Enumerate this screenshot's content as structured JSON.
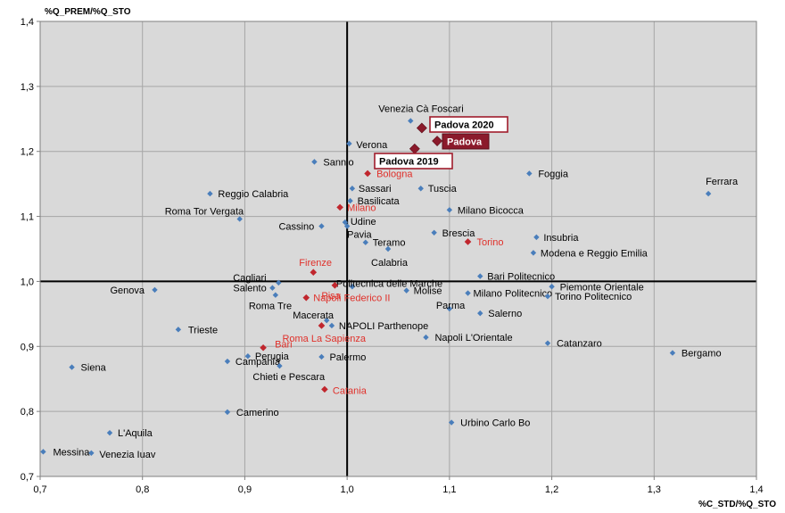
{
  "chart_data": {
    "type": "scatter",
    "title": "",
    "xlabel": "%C_STD/%Q_STO",
    "ylabel": "%Q_PREM/%Q_STO",
    "xlim": [
      0.7,
      1.4
    ],
    "ylim": [
      0.7,
      1.4
    ],
    "xticks": [
      "0,7",
      "0,8",
      "0,9",
      "1,0",
      "1,1",
      "1,2",
      "1,3",
      "1,4"
    ],
    "yticks": [
      "0,7",
      "0,8",
      "0,9",
      "1,0",
      "1,1",
      "1,2",
      "1,3",
      "1,4"
    ],
    "grid": true,
    "reference_lines": {
      "x": 1.0,
      "y": 1.0
    },
    "colors": {
      "blue_point": "#4a7ebb",
      "red_point": "#c0262d",
      "highlight_point": "#8b1a2b",
      "red_label": "#e0302a",
      "plot_bg": "#d9d9d9",
      "grid": "#a6a6a6",
      "highlight_border": "#a01c2c",
      "highlight_fill": "#8b1a2b"
    },
    "points": [
      {
        "name": "Venezia Cà Foscari",
        "x": 1.062,
        "y": 1.247,
        "group": "blue"
      },
      {
        "name": "Verona",
        "x": 1.002,
        "y": 1.212,
        "group": "blue"
      },
      {
        "name": "Sannio",
        "x": 0.968,
        "y": 1.184,
        "group": "blue"
      },
      {
        "name": "Foggia",
        "x": 1.178,
        "y": 1.166,
        "group": "blue"
      },
      {
        "name": "Ferrara",
        "x": 1.353,
        "y": 1.135,
        "group": "blue"
      },
      {
        "name": "Sassari",
        "x": 1.005,
        "y": 1.143,
        "group": "blue"
      },
      {
        "name": "Tuscia",
        "x": 1.072,
        "y": 1.143,
        "group": "blue"
      },
      {
        "name": "Reggio Calabria",
        "x": 0.866,
        "y": 1.135,
        "group": "blue"
      },
      {
        "name": "Basilicata",
        "x": 1.003,
        "y": 1.124,
        "group": "blue"
      },
      {
        "name": "Milano Bicocca",
        "x": 1.1,
        "y": 1.11,
        "group": "blue"
      },
      {
        "name": "Roma Tor Vergata",
        "x": 0.895,
        "y": 1.096,
        "group": "blue"
      },
      {
        "name": "Udine",
        "x": 0.998,
        "y": 1.091,
        "group": "blue"
      },
      {
        "name": "Cassino",
        "x": 0.975,
        "y": 1.085,
        "group": "blue"
      },
      {
        "name": "Pavia",
        "x": 1.0,
        "y": 1.085,
        "group": "blue"
      },
      {
        "name": "Brescia",
        "x": 1.085,
        "y": 1.075,
        "group": "blue"
      },
      {
        "name": "Insubria",
        "x": 1.185,
        "y": 1.068,
        "group": "blue"
      },
      {
        "name": "Teramo",
        "x": 1.018,
        "y": 1.06,
        "group": "blue"
      },
      {
        "name": "Calabria",
        "x": 1.04,
        "y": 1.05,
        "group": "blue"
      },
      {
        "name": "Modena e Reggio Emilia",
        "x": 1.182,
        "y": 1.044,
        "group": "blue"
      },
      {
        "name": "Bari Politecnico",
        "x": 1.13,
        "y": 1.008,
        "group": "blue"
      },
      {
        "name": "Cagliari",
        "x": 0.933,
        "y": 0.998,
        "group": "blue"
      },
      {
        "name": "Politecnica delle Marche",
        "x": 1.005,
        "y": 0.992,
        "group": "blue"
      },
      {
        "name": "Salento",
        "x": 0.927,
        "y": 0.99,
        "group": "blue"
      },
      {
        "name": "Genova",
        "x": 0.812,
        "y": 0.987,
        "group": "blue"
      },
      {
        "name": "Molise",
        "x": 1.058,
        "y": 0.986,
        "group": "blue"
      },
      {
        "name": "Piemonte Orientale",
        "x": 1.2,
        "y": 0.992,
        "group": "blue"
      },
      {
        "name": "Milano Politecnico",
        "x": 1.118,
        "y": 0.982,
        "group": "blue"
      },
      {
        "name": "Roma Tre",
        "x": 0.93,
        "y": 0.979,
        "group": "blue"
      },
      {
        "name": "Torino Politecnico",
        "x": 1.196,
        "y": 0.977,
        "group": "blue"
      },
      {
        "name": "Parma",
        "x": 1.1,
        "y": 0.958,
        "group": "blue"
      },
      {
        "name": "Salerno",
        "x": 1.13,
        "y": 0.951,
        "group": "blue"
      },
      {
        "name": "Macerata",
        "x": 0.98,
        "y": 0.94,
        "group": "blue"
      },
      {
        "name": "NAPOLI Parthenope",
        "x": 0.985,
        "y": 0.932,
        "group": "blue"
      },
      {
        "name": "Trieste",
        "x": 0.835,
        "y": 0.926,
        "group": "blue"
      },
      {
        "name": "Napoli L'Orientale",
        "x": 1.077,
        "y": 0.914,
        "group": "blue"
      },
      {
        "name": "Catanzaro",
        "x": 1.196,
        "y": 0.905,
        "group": "blue"
      },
      {
        "name": "Bergamo",
        "x": 1.318,
        "y": 0.89,
        "group": "blue"
      },
      {
        "name": "Perugia",
        "x": 0.903,
        "y": 0.885,
        "group": "blue"
      },
      {
        "name": "Palermo",
        "x": 0.975,
        "y": 0.884,
        "group": "blue"
      },
      {
        "name": "Campania",
        "x": 0.883,
        "y": 0.877,
        "group": "blue"
      },
      {
        "name": "Chieti e Pescara",
        "x": 0.934,
        "y": 0.87,
        "group": "blue"
      },
      {
        "name": "Siena",
        "x": 0.731,
        "y": 0.868,
        "group": "blue"
      },
      {
        "name": "Camerino",
        "x": 0.883,
        "y": 0.799,
        "group": "blue"
      },
      {
        "name": "Urbino Carlo Bo",
        "x": 1.102,
        "y": 0.783,
        "group": "blue"
      },
      {
        "name": "L'Aquila",
        "x": 0.768,
        "y": 0.767,
        "group": "blue"
      },
      {
        "name": "Messina",
        "x": 0.703,
        "y": 0.738,
        "group": "blue"
      },
      {
        "name": "Venezia Iuav",
        "x": 0.75,
        "y": 0.736,
        "group": "blue"
      },
      {
        "name": "Bologna",
        "x": 1.02,
        "y": 1.166,
        "group": "red"
      },
      {
        "name": "Milano",
        "x": 0.993,
        "y": 1.114,
        "group": "red"
      },
      {
        "name": "Torino",
        "x": 1.118,
        "y": 1.061,
        "group": "red"
      },
      {
        "name": "Firenze",
        "x": 0.967,
        "y": 1.014,
        "group": "red"
      },
      {
        "name": "Pisa",
        "x": 0.988,
        "y": 0.994,
        "group": "red"
      },
      {
        "name": "Napoli Federico II",
        "x": 0.96,
        "y": 0.975,
        "group": "red"
      },
      {
        "name": "Roma La Sapienza",
        "x": 0.975,
        "y": 0.932,
        "group": "red"
      },
      {
        "name": "Bari",
        "x": 0.918,
        "y": 0.898,
        "group": "red"
      },
      {
        "name": "Catania",
        "x": 0.978,
        "y": 0.834,
        "group": "red"
      },
      {
        "name": "Padova 2020",
        "x": 1.073,
        "y": 1.236,
        "group": "highlight",
        "style": "box"
      },
      {
        "name": "Padova",
        "x": 1.088,
        "y": 1.216,
        "group": "highlight",
        "style": "filled"
      },
      {
        "name": "Padova 2019",
        "x": 1.066,
        "y": 1.204,
        "group": "highlight",
        "style": "box"
      }
    ]
  }
}
